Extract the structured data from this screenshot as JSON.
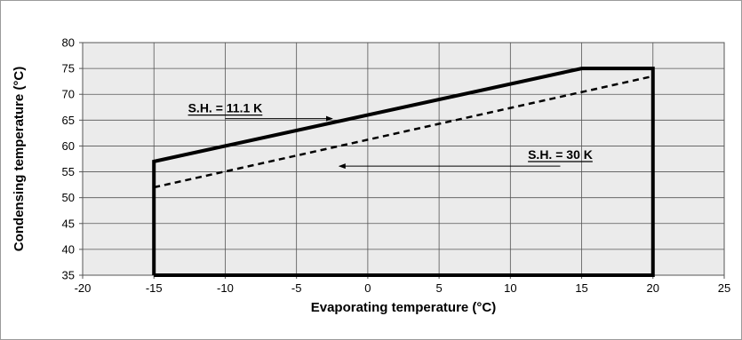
{
  "chart_data": {
    "type": "line",
    "title": "",
    "xlabel": "Evaporating temperature (°C)",
    "ylabel": "Condensing temperature (°C)",
    "xlim": [
      -20,
      25
    ],
    "ylim": [
      35,
      80
    ],
    "x_ticks": [
      -20,
      -15,
      -10,
      -5,
      0,
      5,
      10,
      15,
      20,
      25
    ],
    "y_ticks": [
      35,
      40,
      45,
      50,
      55,
      60,
      65,
      70,
      75,
      80
    ],
    "grid": true,
    "plot_background": "#ebebeb",
    "series": [
      {
        "name": "S.H. = 11.1 K",
        "style": "solid",
        "points": [
          [
            -15,
            35
          ],
          [
            -15,
            57
          ],
          [
            15,
            75
          ],
          [
            20,
            75
          ],
          [
            20,
            35
          ],
          [
            -15,
            35
          ]
        ]
      },
      {
        "name": "S.H. = 30 K",
        "style": "dashed",
        "points": [
          [
            -15,
            52
          ],
          [
            20,
            73.5
          ]
        ]
      }
    ],
    "annotations": [
      {
        "text": "S.H. = 11.1 K",
        "label_at": [
          -10,
          66.5
        ],
        "arrow_from": [
          -10,
          65.3
        ],
        "arrow_to": [
          -2.5,
          65.3
        ]
      },
      {
        "text": "S.H. = 30 K",
        "label_at": [
          13.5,
          57.5
        ],
        "arrow_from": [
          13.5,
          56.1
        ],
        "arrow_to": [
          -2,
          56.1
        ]
      }
    ]
  }
}
